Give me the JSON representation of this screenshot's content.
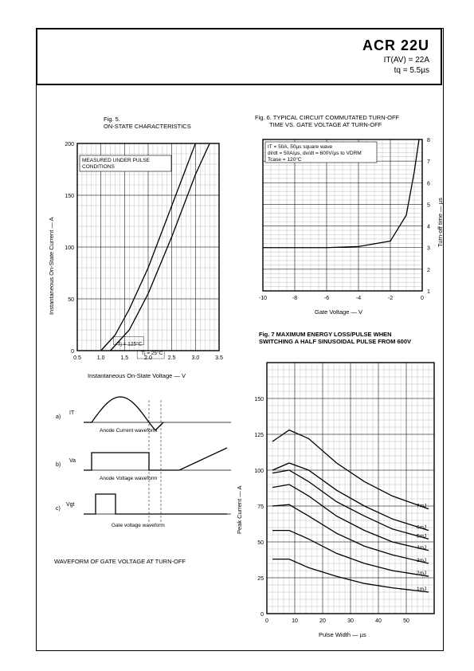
{
  "header": {
    "part_number": "ACR 22U",
    "spec1": "IT(AV) = 22A",
    "spec2": "tq = 5.5µs"
  },
  "fig5": {
    "title_line1": "Fig. 5.",
    "title_line2": "ON-STATE CHARACTERISTICS",
    "note": "MEASURED UNDER PULSE CONDITIONS",
    "xlabel": "Instantaneous On-State Voltage — V",
    "ylabel": "Instantaneous On-State Current — A",
    "xlim": [
      0.5,
      3.5
    ],
    "xticks": [
      0.5,
      1.0,
      1.5,
      2.0,
      2.5,
      3.0,
      3.5
    ],
    "ylim": [
      0,
      200
    ],
    "yticks": [
      0,
      50,
      100,
      150,
      200
    ],
    "grid_minor_step_x": 0.1,
    "grid_minor_step_y": 10,
    "curve1_label": "Tj = 125°C",
    "curve1": [
      [
        1.0,
        0
      ],
      [
        1.3,
        15
      ],
      [
        1.6,
        40
      ],
      [
        2.0,
        80
      ],
      [
        2.5,
        140
      ],
      [
        3.0,
        200
      ]
    ],
    "curve2_label": "Tj = 25°C",
    "curve2": [
      [
        1.2,
        0
      ],
      [
        1.6,
        20
      ],
      [
        2.0,
        55
      ],
      [
        2.5,
        110
      ],
      [
        3.0,
        170
      ],
      [
        3.3,
        200
      ]
    ],
    "bg": "#ffffff",
    "grid_color": "#888888"
  },
  "fig6": {
    "title_line1": "Fig. 6. TYPICAL CIRCUIT COMMUTATED TURN-OFF",
    "title_line2": "TIME VS. GATE VOLTAGE AT TURN-OFF",
    "note_lines": [
      "IT = 50A, 50µs square wave",
      "dI/dt = 50A/µs, dv/dt = 600V/µs to VDRM",
      "Tcase = 120°C"
    ],
    "xlabel": "Gate Voltage — V",
    "ylabel": "Turn-off time — µs",
    "xlim": [
      -10,
      0
    ],
    "xticks": [
      -10,
      -8,
      -6,
      -4,
      -2,
      0
    ],
    "ylim": [
      1,
      8
    ],
    "yticks": [
      1,
      2,
      3,
      4,
      5,
      6,
      7,
      8
    ],
    "curve": [
      [
        -10,
        3.0
      ],
      [
        -8,
        3.0
      ],
      [
        -6,
        3.0
      ],
      [
        -4,
        3.05
      ],
      [
        -2,
        3.3
      ],
      [
        -1,
        4.5
      ],
      [
        -0.5,
        6.5
      ],
      [
        -0.2,
        8
      ]
    ],
    "bg": "#ffffff",
    "grid_color": "#888888"
  },
  "waveforms": {
    "a_label": "a)",
    "a_name": "IT",
    "a_caption": "Anode Current waveform",
    "b_label": "b)",
    "b_name": "Va",
    "b_caption": "Anode Voltage waveform",
    "c_label": "c)",
    "c_name": "Vgt",
    "c_caption": "Gate voltage waveform",
    "footer": "WAVEFORM OF GATE VOLTAGE AT TURN-OFF"
  },
  "fig7": {
    "title_line1": "Fig. 7  MAXIMUM ENERGY LOSS/PULSE WHEN",
    "title_line2": "SWITCHING A HALF SINUSOIDAL PULSE FROM 600V",
    "xlabel": "Pulse Width — µs",
    "ylabel": "Peak Current — A",
    "xlim": [
      0,
      60
    ],
    "xticks": [
      0,
      10,
      20,
      30,
      40,
      50
    ],
    "ylim": [
      0,
      175
    ],
    "yticks": [
      0,
      25,
      50,
      75,
      100,
      125,
      150
    ],
    "curves": [
      {
        "label": "7mJ",
        "pts": [
          [
            2,
            120
          ],
          [
            8,
            128
          ],
          [
            15,
            122
          ],
          [
            25,
            105
          ],
          [
            35,
            92
          ],
          [
            45,
            82
          ],
          [
            58,
            73
          ]
        ]
      },
      {
        "label": "6mJ",
        "pts": [
          [
            2,
            100
          ],
          [
            8,
            105
          ],
          [
            15,
            100
          ],
          [
            25,
            86
          ],
          [
            35,
            75
          ],
          [
            45,
            66
          ],
          [
            58,
            58
          ]
        ]
      },
      {
        "label": "5mJ",
        "pts": [
          [
            2,
            98
          ],
          [
            8,
            100
          ],
          [
            15,
            92
          ],
          [
            25,
            78
          ],
          [
            35,
            68
          ],
          [
            45,
            59
          ],
          [
            58,
            52
          ]
        ]
      },
      {
        "label": "4mJ",
        "pts": [
          [
            2,
            88
          ],
          [
            8,
            90
          ],
          [
            15,
            82
          ],
          [
            25,
            68
          ],
          [
            35,
            58
          ],
          [
            45,
            50
          ],
          [
            58,
            44
          ]
        ]
      },
      {
        "label": "3mJ",
        "pts": [
          [
            2,
            75
          ],
          [
            8,
            76
          ],
          [
            15,
            68
          ],
          [
            25,
            56
          ],
          [
            35,
            47
          ],
          [
            45,
            41
          ],
          [
            58,
            35
          ]
        ]
      },
      {
        "label": "2mJ",
        "pts": [
          [
            2,
            58
          ],
          [
            8,
            58
          ],
          [
            15,
            52
          ],
          [
            25,
            42
          ],
          [
            35,
            35
          ],
          [
            45,
            30
          ],
          [
            58,
            26
          ]
        ]
      },
      {
        "label": "1mJ",
        "pts": [
          [
            2,
            38
          ],
          [
            8,
            38
          ],
          [
            15,
            32
          ],
          [
            25,
            26
          ],
          [
            35,
            21
          ],
          [
            45,
            18
          ],
          [
            58,
            15
          ]
        ]
      }
    ],
    "bg": "#ffffff",
    "grid_color": "#888888"
  }
}
